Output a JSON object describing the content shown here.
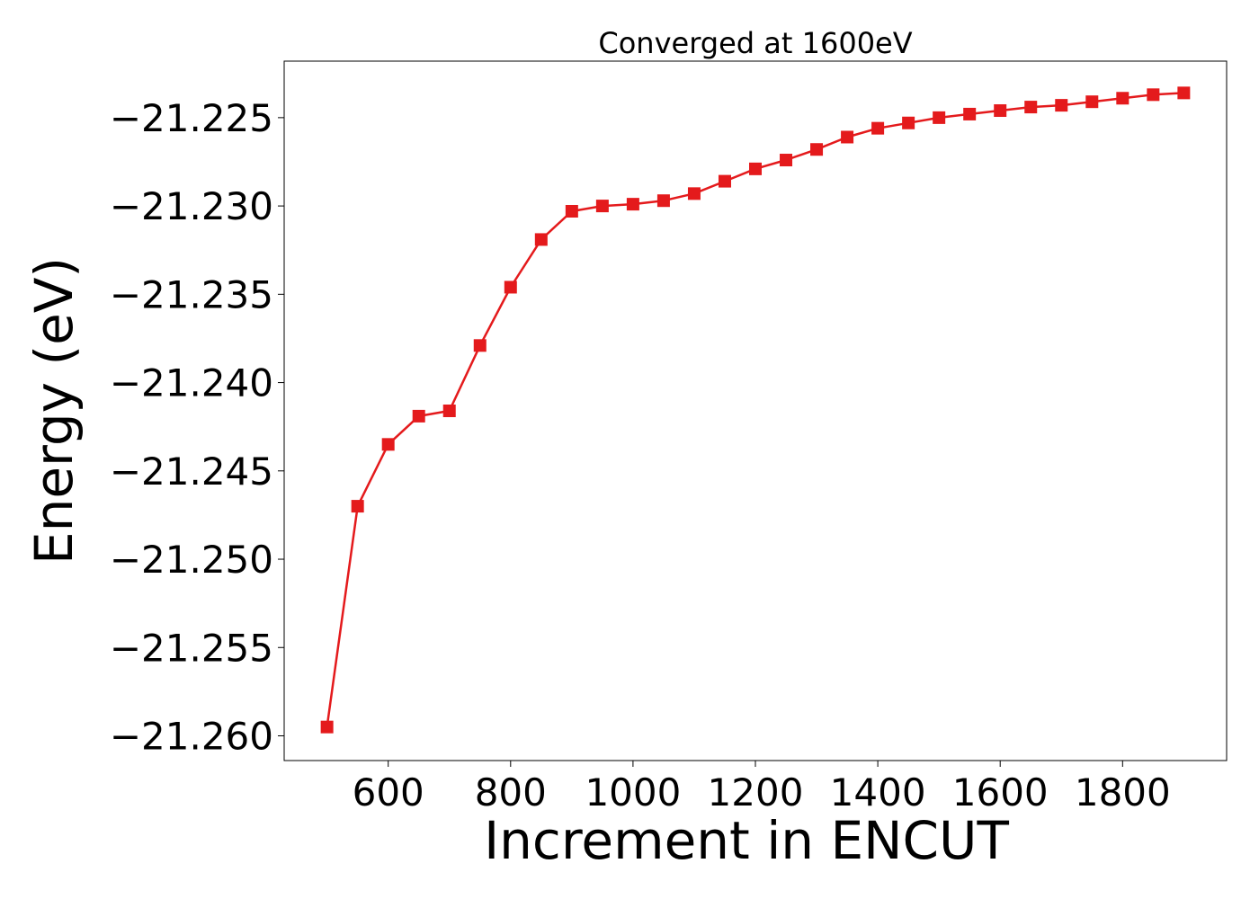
{
  "chart_data": {
    "type": "line",
    "title": "Converged at 1600eV",
    "xlabel": "Increment in ENCUT",
    "ylabel": "Energy (eV)",
    "xlim": [
      430,
      1970
    ],
    "ylim": [
      -21.2614,
      -21.2218
    ],
    "xticks": [
      600,
      800,
      1000,
      1200,
      1400,
      1600,
      1800
    ],
    "xtick_labels": [
      "600",
      "800",
      "1000",
      "1200",
      "1400",
      "1600",
      "1800"
    ],
    "yticks": [
      -21.225,
      -21.23,
      -21.235,
      -21.24,
      -21.245,
      -21.25,
      -21.255,
      -21.26
    ],
    "ytick_labels": [
      "−21.225",
      "−21.230",
      "−21.235",
      "−21.240",
      "−21.245",
      "−21.250",
      "−21.255",
      "−21.260"
    ],
    "grid": false,
    "series": [
      {
        "color": "#e41a1c",
        "marker": "square",
        "points": [
          {
            "x": 500,
            "y": -21.2595
          },
          {
            "x": 550,
            "y": -21.247
          },
          {
            "x": 600,
            "y": -21.2435
          },
          {
            "x": 650,
            "y": -21.2419
          },
          {
            "x": 700,
            "y": -21.2416
          },
          {
            "x": 750,
            "y": -21.2379
          },
          {
            "x": 800,
            "y": -21.2346
          },
          {
            "x": 850,
            "y": -21.2319
          },
          {
            "x": 900,
            "y": -21.2303
          },
          {
            "x": 950,
            "y": -21.23
          },
          {
            "x": 1000,
            "y": -21.2299
          },
          {
            "x": 1050,
            "y": -21.2297
          },
          {
            "x": 1100,
            "y": -21.2293
          },
          {
            "x": 1150,
            "y": -21.2286
          },
          {
            "x": 1200,
            "y": -21.2279
          },
          {
            "x": 1250,
            "y": -21.2274
          },
          {
            "x": 1300,
            "y": -21.2268
          },
          {
            "x": 1350,
            "y": -21.2261
          },
          {
            "x": 1400,
            "y": -21.2256
          },
          {
            "x": 1450,
            "y": -21.2253
          },
          {
            "x": 1500,
            "y": -21.225
          },
          {
            "x": 1550,
            "y": -21.2248
          },
          {
            "x": 1600,
            "y": -21.2246
          },
          {
            "x": 1650,
            "y": -21.2244
          },
          {
            "x": 1700,
            "y": -21.2243
          },
          {
            "x": 1750,
            "y": -21.2241
          },
          {
            "x": 1800,
            "y": -21.2239
          },
          {
            "x": 1850,
            "y": -21.2237
          },
          {
            "x": 1900,
            "y": -21.2236
          }
        ]
      }
    ]
  }
}
